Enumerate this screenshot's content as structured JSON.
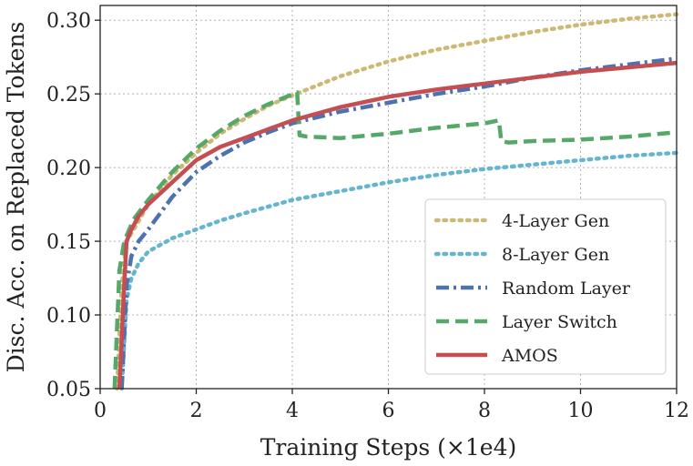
{
  "chart_data": {
    "type": "line",
    "title": "",
    "xlabel": "Training Steps (×1e4)",
    "ylabel": "Disc. Acc. on Replaced Tokens",
    "xlim": [
      0,
      12
    ],
    "ylim": [
      0.05,
      0.31
    ],
    "xticks": [
      0,
      2,
      4,
      6,
      8,
      10,
      12
    ],
    "xtick_labels": [
      "0",
      "2",
      "4",
      "6",
      "8",
      "10",
      "12"
    ],
    "yticks": [
      0.05,
      0.1,
      0.15,
      0.2,
      0.25,
      0.3
    ],
    "ytick_labels": [
      "0.05",
      "0.10",
      "0.15",
      "0.20",
      "0.25",
      "0.30"
    ],
    "grid": true,
    "legend_position": "lower-right",
    "series": [
      {
        "name": "4-Layer Gen",
        "color": "#ccb974",
        "style": "dotted",
        "x": [
          0.35,
          0.45,
          0.55,
          0.7,
          1,
          1.5,
          2,
          2.5,
          3,
          3.5,
          4,
          5,
          6,
          7,
          8,
          9,
          10,
          11,
          12
        ],
        "y": [
          0.05,
          0.12,
          0.15,
          0.158,
          0.175,
          0.195,
          0.21,
          0.223,
          0.233,
          0.242,
          0.249,
          0.262,
          0.272,
          0.28,
          0.286,
          0.292,
          0.297,
          0.301,
          0.304
        ]
      },
      {
        "name": "8-Layer Gen",
        "color": "#64b5cd",
        "style": "dotted",
        "x": [
          0.45,
          0.55,
          0.65,
          0.8,
          1,
          1.5,
          2,
          2.5,
          3,
          4,
          5,
          6,
          7,
          8,
          9,
          10,
          11,
          12
        ],
        "y": [
          0.05,
          0.11,
          0.125,
          0.135,
          0.143,
          0.152,
          0.158,
          0.164,
          0.169,
          0.178,
          0.184,
          0.19,
          0.195,
          0.199,
          0.202,
          0.205,
          0.208,
          0.21
        ]
      },
      {
        "name": "Random Layer",
        "color": "#4c72b0",
        "style": "dashdot",
        "x": [
          0.45,
          0.55,
          0.65,
          0.8,
          1,
          1.5,
          2,
          2.5,
          3,
          3.5,
          4,
          5,
          6,
          7,
          8,
          9,
          10,
          11,
          12
        ],
        "y": [
          0.05,
          0.12,
          0.14,
          0.15,
          0.158,
          0.18,
          0.197,
          0.208,
          0.217,
          0.224,
          0.23,
          0.238,
          0.244,
          0.25,
          0.255,
          0.261,
          0.266,
          0.27,
          0.274
        ]
      },
      {
        "name": "Layer Switch",
        "color": "#55a868",
        "style": "dashed",
        "x": [
          0.3,
          0.4,
          0.5,
          0.7,
          1,
          1.5,
          2,
          2.5,
          3,
          3.5,
          4.1,
          4.15,
          4.3,
          5,
          6,
          7,
          8,
          8.3,
          8.35,
          8.5,
          9,
          10,
          11,
          12
        ],
        "y": [
          0.05,
          0.13,
          0.15,
          0.165,
          0.178,
          0.197,
          0.213,
          0.225,
          0.235,
          0.243,
          0.251,
          0.222,
          0.221,
          0.22,
          0.223,
          0.227,
          0.23,
          0.232,
          0.218,
          0.217,
          0.218,
          0.219,
          0.221,
          0.224
        ]
      },
      {
        "name": "AMOS",
        "color": "#c44e52",
        "style": "solid",
        "x": [
          0.4,
          0.5,
          0.55,
          0.65,
          0.8,
          1,
          1.5,
          2,
          2.5,
          3,
          3.5,
          4,
          5,
          6,
          7,
          8,
          9,
          10,
          11,
          12
        ],
        "y": [
          0.05,
          0.12,
          0.15,
          0.158,
          0.167,
          0.175,
          0.19,
          0.205,
          0.214,
          0.22,
          0.226,
          0.232,
          0.241,
          0.248,
          0.253,
          0.257,
          0.261,
          0.265,
          0.268,
          0.271
        ]
      }
    ]
  }
}
